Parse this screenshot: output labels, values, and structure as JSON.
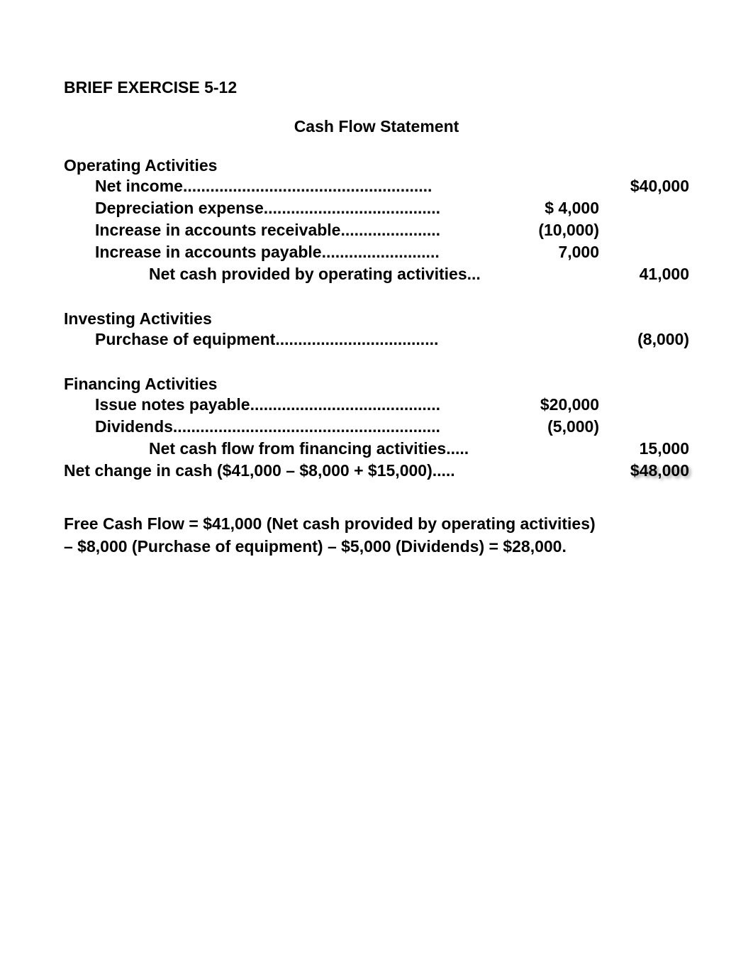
{
  "document": {
    "title": "BRIEF EXERCISE 5-12",
    "subtitle": "Cash Flow Statement",
    "background_color": "#ffffff",
    "text_color": "#000000",
    "font_family": "Arial",
    "title_fontsize": 23,
    "body_fontsize": 23,
    "font_weight": "bold"
  },
  "operating": {
    "heading": "Operating Activities",
    "net_income": {
      "label": "Net income.......................................................",
      "value": "$40,000"
    },
    "depreciation": {
      "label": "Depreciation expense.......................................",
      "value": "$  4,000"
    },
    "ar_increase": {
      "label": "Increase in accounts receivable......................",
      "value": "(10,000)"
    },
    "ap_increase": {
      "label": "Increase in accounts payable..........................",
      "value": "7,000"
    },
    "net_cash": {
      "label": "Net cash provided by operating activities...",
      "value": "41,000"
    }
  },
  "investing": {
    "heading": "Investing Activities",
    "purchase_equipment": {
      "label": "Purchase of equipment....................................",
      "value": "(8,000)"
    }
  },
  "financing": {
    "heading": "Financing Activities",
    "notes_payable": {
      "label": "Issue notes payable..........................................",
      "value": "$20,000"
    },
    "dividends": {
      "label": "Dividends...........................................................",
      "value": "(5,000)"
    },
    "net_cash": {
      "label": "Net cash flow from financing activities.....",
      "value": "15,000"
    }
  },
  "net_change": {
    "label": "Net change in cash ($41,000 – $8,000 + $15,000).....",
    "value": "$48,000"
  },
  "footer": {
    "line1": "Free Cash Flow = $41,000 (Net cash provided by operating activities)",
    "line2": "– $8,000 (Purchase of equipment) – $5,000 (Dividends) = $28,000."
  }
}
